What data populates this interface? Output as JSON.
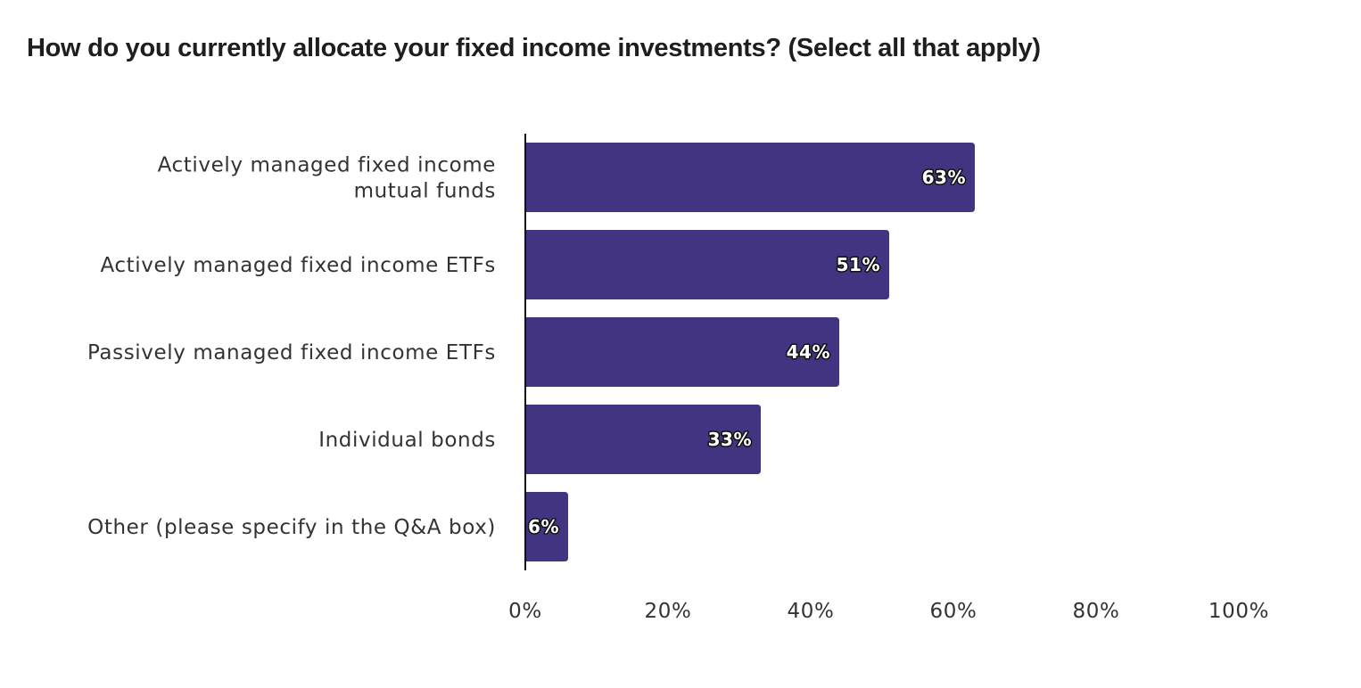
{
  "chart_data": {
    "type": "bar",
    "orientation": "horizontal",
    "title": "How do you currently allocate your fixed income investments? (Select all that apply)",
    "xlabel": "",
    "ylabel": "",
    "categories": [
      [
        "Actively managed fixed income",
        "mutual funds"
      ],
      [
        "Actively managed fixed income ETFs"
      ],
      [
        "Passively managed fixed income ETFs"
      ],
      [
        "Individual bonds"
      ],
      [
        "Other (please specify in the Q&A box)"
      ]
    ],
    "values": [
      63,
      51,
      44,
      33,
      6
    ],
    "value_labels": [
      "63%",
      "51%",
      "44%",
      "33%",
      "6%"
    ],
    "xlim": [
      0,
      100
    ],
    "x_ticks": [
      0,
      20,
      40,
      60,
      80,
      100
    ],
    "x_tick_labels": [
      "0%",
      "20%",
      "40%",
      "60%",
      "80%",
      "100%"
    ],
    "grid": false,
    "legend": "none",
    "bar_color": "#433482",
    "axis_color": "#111111"
  }
}
